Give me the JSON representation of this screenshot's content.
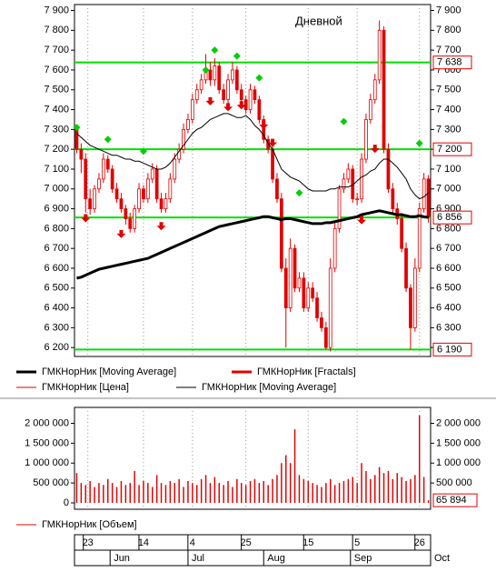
{
  "chart_data": [
    {
      "type": "candlestick",
      "annotation": "Дневной",
      "xlim": [
        -0.5,
        79.5
      ],
      "ylim": [
        6155,
        7930
      ],
      "yticks": [
        {
          "value": 6200,
          "label": "6 200"
        },
        {
          "value": 6300,
          "label": "6 300"
        },
        {
          "value": 6400,
          "label": "6 400"
        },
        {
          "value": 6500,
          "label": "6 500"
        },
        {
          "value": 6600,
          "label": "6 600"
        },
        {
          "value": 6700,
          "label": "6 700"
        },
        {
          "value": 6800,
          "label": "6 800"
        },
        {
          "value": 6900,
          "label": "6 900"
        },
        {
          "value": 7000,
          "label": "7 000"
        },
        {
          "value": 7100,
          "label": "7 100"
        },
        {
          "value": 7200,
          "label": "7 200"
        },
        {
          "value": 7300,
          "label": "7 300"
        },
        {
          "value": 7400,
          "label": "7 400"
        },
        {
          "value": 7500,
          "label": "7 500"
        },
        {
          "value": 7600,
          "label": "7 600"
        },
        {
          "value": 7700,
          "label": "7 700"
        },
        {
          "value": 7800,
          "label": "7 800"
        },
        {
          "value": 7900,
          "label": "7 900"
        }
      ],
      "candles": {
        "name": "ГМКНорНик [Цена]",
        "color": "#e00000",
        "open": [
          7300,
          7200,
          7150,
          6950,
          6900,
          7000,
          7050,
          7150,
          7100,
          7000,
          6950,
          6900,
          6850,
          6800,
          6900,
          7000,
          6950,
          7050,
          7100,
          6950,
          6900,
          6950,
          7050,
          7150,
          7200,
          7300,
          7350,
          7450,
          7500,
          7550,
          7600,
          7550,
          7620,
          7500,
          7450,
          7550,
          7600,
          7500,
          7450,
          7400,
          7500,
          7450,
          7350,
          7250,
          7200,
          7050,
          6950,
          6600,
          6400,
          6700,
          6500,
          6550,
          6400,
          6500,
          6450,
          6350,
          6300,
          6200,
          6600,
          6800,
          7000,
          7050,
          7100,
          6950,
          6950,
          7150,
          7350,
          7450,
          7550,
          7800,
          7200,
          7000,
          6900,
          6850,
          6700,
          6500,
          6300,
          6600,
          6900,
          7050
        ],
        "high": [
          7320,
          7230,
          7180,
          7000,
          7020,
          7080,
          7180,
          7170,
          7120,
          7030,
          6980,
          6920,
          6880,
          6920,
          7030,
          7020,
          7080,
          7130,
          7120,
          6980,
          6980,
          7080,
          7180,
          7230,
          7330,
          7380,
          7480,
          7530,
          7580,
          7680,
          7640,
          7660,
          7640,
          7530,
          7580,
          7640,
          7620,
          7530,
          7470,
          7530,
          7520,
          7470,
          7370,
          7270,
          7220,
          7080,
          6980,
          6650,
          6750,
          6720,
          6580,
          6580,
          6530,
          6530,
          6480,
          6380,
          6330,
          6650,
          6830,
          7020,
          7080,
          7130,
          7120,
          6980,
          7180,
          7380,
          7480,
          7580,
          7850,
          7820,
          7230,
          7030,
          6930,
          6880,
          6730,
          6520,
          6650,
          6930,
          7080,
          7070
        ],
        "low": [
          7180,
          7080,
          6880,
          6870,
          6880,
          6980,
          7030,
          7080,
          6980,
          6930,
          6880,
          6820,
          6780,
          6780,
          6880,
          6930,
          6930,
          7030,
          6930,
          6880,
          6880,
          6930,
          7030,
          7130,
          7180,
          7280,
          7330,
          7430,
          7480,
          7530,
          7520,
          7520,
          7480,
          7430,
          7430,
          7530,
          7480,
          7430,
          7380,
          7380,
          7430,
          7330,
          7230,
          7180,
          7030,
          6930,
          6580,
          6200,
          6380,
          6480,
          6480,
          6380,
          6380,
          6430,
          6330,
          6280,
          6190,
          6180,
          6580,
          6780,
          6980,
          7030,
          6930,
          6920,
          6930,
          7130,
          7330,
          7430,
          7530,
          7180,
          6980,
          6880,
          6820,
          6680,
          6480,
          6190,
          6280,
          6580,
          6880,
          6830
        ],
        "close": [
          7200,
          7150,
          6950,
          6900,
          7000,
          7050,
          7150,
          7100,
          7000,
          6950,
          6900,
          6850,
          6800,
          6900,
          7000,
          6950,
          7050,
          7100,
          6950,
          6900,
          6950,
          7050,
          7150,
          7200,
          7300,
          7350,
          7450,
          7500,
          7550,
          7600,
          7550,
          7620,
          7500,
          7450,
          7550,
          7600,
          7500,
          7450,
          7400,
          7500,
          7450,
          7350,
          7250,
          7200,
          7050,
          6950,
          6600,
          6400,
          6700,
          6500,
          6550,
          6400,
          6500,
          6450,
          6350,
          6300,
          6200,
          6600,
          6800,
          7000,
          7050,
          7100,
          6950,
          6950,
          7150,
          7350,
          7450,
          7550,
          7800,
          7200,
          7000,
          6900,
          6850,
          6700,
          6500,
          6300,
          6600,
          6900,
          7050,
          6860
        ]
      },
      "series": [
        {
          "name": "ГМКНорНик [Moving Average]",
          "color": "#000000",
          "line_width": 3,
          "values": [
            6550,
            6555,
            6565,
            6575,
            6585,
            6595,
            6600,
            6605,
            6610,
            6615,
            6620,
            6625,
            6630,
            6635,
            6640,
            6645,
            6650,
            6660,
            6670,
            6680,
            6690,
            6700,
            6710,
            6720,
            6730,
            6740,
            6750,
            6760,
            6770,
            6780,
            6790,
            6800,
            6810,
            6815,
            6820,
            6825,
            6830,
            6835,
            6840,
            6845,
            6850,
            6855,
            6860,
            6860,
            6855,
            6850,
            6845,
            6850,
            6850,
            6845,
            6840,
            6835,
            6830,
            6825,
            6825,
            6825,
            6830,
            6830,
            6835,
            6840,
            6845,
            6850,
            6855,
            6860,
            6870,
            6875,
            6880,
            6885,
            6890,
            6885,
            6880,
            6875,
            6870,
            6870,
            6865,
            6860,
            6860,
            6865,
            6860,
            6856
          ]
        },
        {
          "name": "ГМКНорНик [Moving Average]",
          "color": "#000000",
          "line_width": 1,
          "values": [
            7280,
            7260,
            7240,
            7220,
            7210,
            7200,
            7190,
            7180,
            7170,
            7170,
            7160,
            7150,
            7150,
            7140,
            7140,
            7130,
            7120,
            7110,
            7100,
            7100,
            7110,
            7130,
            7160,
            7190,
            7220,
            7250,
            7280,
            7300,
            7310,
            7330,
            7350,
            7360,
            7370,
            7380,
            7380,
            7370,
            7360,
            7360,
            7370,
            7350,
            7320,
            7300,
            7270,
            7230,
            7200,
            7150,
            7100,
            7080,
            7060,
            7050,
            7040,
            7020,
            7000,
            6990,
            6990,
            6990,
            6990,
            7000,
            7000,
            7010,
            7010,
            7010,
            7020,
            7040,
            7060,
            7070,
            7090,
            7100,
            7130,
            7150,
            7150,
            7130,
            7110,
            7080,
            7050,
            7000,
            6970,
            6950,
            6960,
            6980
          ]
        }
      ],
      "fractals": {
        "name": "ГМКНорНик [Fractals]",
        "up_color": "#00d000",
        "down_color": "#e00000",
        "up": {
          "x": [
            0,
            7,
            15,
            29,
            31,
            36,
            41,
            50,
            60,
            77
          ],
          "values": [
            7310,
            7250,
            7190,
            7600,
            7700,
            7670,
            7560,
            6980,
            7340,
            7230
          ]
        },
        "down": {
          "x": [
            2,
            10,
            19,
            30,
            34,
            37,
            42,
            44,
            64,
            67
          ],
          "values": [
            6850,
            6770,
            6810,
            7440,
            7410,
            7420,
            7320,
            7230,
            6840,
            7200
          ]
        }
      },
      "levels": {
        "color": "#00e000",
        "values": [
          {
            "value": 7638,
            "label": "7 638"
          },
          {
            "value": 7200,
            "label": "7 200"
          },
          {
            "value": 6856,
            "label": "6 856"
          },
          {
            "value": 6190,
            "label": "6 190"
          }
        ]
      }
    },
    {
      "type": "bar",
      "xlim": [
        -0.5,
        79.5
      ],
      "ylim": [
        -160000,
        2400000
      ],
      "yticks": [
        {
          "value": 0,
          "label": "0"
        },
        {
          "value": 500000,
          "label": "500 000"
        },
        {
          "value": 1000000,
          "label": "1 000 000"
        },
        {
          "value": 1500000,
          "label": "1 500 000"
        },
        {
          "value": 2000000,
          "label": "2 000 000"
        }
      ],
      "series": [
        {
          "name": "ГМКНорНик [Объем]",
          "color": "#e00000",
          "values": [
            750000,
            500000,
            450000,
            550000,
            400000,
            500000,
            450000,
            600000,
            500000,
            400000,
            550000,
            450000,
            500000,
            800000,
            450000,
            550000,
            500000,
            400000,
            700000,
            500000,
            450000,
            550000,
            500000,
            600000,
            400000,
            550000,
            500000,
            450000,
            600000,
            700000,
            500000,
            650000,
            500000,
            450000,
            550000,
            400000,
            600000,
            500000,
            450000,
            550000,
            600000,
            500000,
            550000,
            450000,
            600000,
            700000,
            1000000,
            1200000,
            1000000,
            1850000,
            700000,
            600000,
            550000,
            500000,
            450000,
            400000,
            500000,
            600000,
            450000,
            500000,
            550000,
            600000,
            650000,
            500000,
            1000000,
            800000,
            600000,
            700000,
            900000,
            750000,
            800000,
            600000,
            750000,
            650000,
            550000,
            600000,
            700000,
            2200000,
            650000,
            65894
          ]
        }
      ],
      "last_value_label": "65 894",
      "xticks": [
        {
          "value": 2.5,
          "label": "23"
        },
        {
          "value": 15,
          "label": "14"
        },
        {
          "value": 26,
          "label": "4"
        },
        {
          "value": 38,
          "label": "25"
        },
        {
          "value": 52,
          "label": "15"
        },
        {
          "value": 63,
          "label": "5"
        },
        {
          "value": 77,
          "label": "26"
        }
      ],
      "month_ticks": [
        {
          "value": 7.5,
          "label": "Jun"
        },
        {
          "value": 25,
          "label": "Jul"
        },
        {
          "value": 42,
          "label": "Aug"
        },
        {
          "value": 61.5,
          "label": "Sep"
        },
        {
          "value": 79.5,
          "label": "Oct"
        }
      ]
    }
  ]
}
